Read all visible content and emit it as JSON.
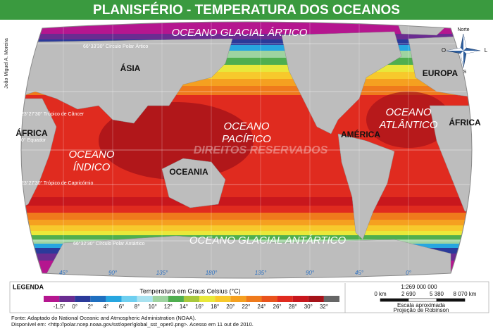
{
  "title": "PLANISFÉRIO - TEMPERATURA DOS OCEANOS",
  "author": "João Miguel A. Moreira",
  "watermark": "DIREITOS RESERVADOS",
  "oceans": [
    [
      "OCEANO GLACIAL ÁRTICO"
    ],
    [
      "OCEANO",
      "PACÍFICO"
    ],
    [
      "OCEANO",
      "ATLÂNTICO"
    ],
    [
      "OCEANO",
      "ÍNDICO"
    ],
    [
      "OCEANO GLACIAL ANTÁRTICO"
    ]
  ],
  "continents": [
    "ÁSIA",
    "EUROPA",
    "ÁFRICA",
    "ÁFRICA",
    "AMÉRICA",
    "OCEANIA"
  ],
  "lines": [
    "66°33'30\" Círculo Polar Ártico",
    "23°27'30\" Trópico de Câncer",
    "0° Equador",
    "23°27'30\" Trópico de Capricórnio",
    "66°32'30\" Círculo Polar Antártico"
  ],
  "longitudes": [
    "45°",
    "90°",
    "135°",
    "180°",
    "135°",
    "90°",
    "45°",
    "0°"
  ],
  "compass": {
    "north": "Norte",
    "west": "O",
    "east": "L",
    "south": "S"
  },
  "legend": {
    "title": "LEGENDA",
    "caption": "Temperatura em Graus Celsius (°C)",
    "labels": [
      "-1,5°",
      "0°",
      "2°",
      "4°",
      "6°",
      "8°",
      "10°",
      "12°",
      "14°",
      "16°",
      "18°",
      "20°",
      "22°",
      "24°",
      "26°",
      "28°",
      "30°",
      "32°"
    ],
    "colors": [
      "#b5168f",
      "#6a2c91",
      "#2b3a9a",
      "#1f6fc0",
      "#27a6e0",
      "#6ecff0",
      "#a9e2f0",
      "#9ed3a0",
      "#4fae4f",
      "#a8c83c",
      "#e9e83a",
      "#f7c92c",
      "#f5a020",
      "#ef7a1c",
      "#e9531c",
      "#e02b1f",
      "#c8171d",
      "#a51319",
      "#666666"
    ]
  },
  "scale": {
    "ratio": "1:269 000 000",
    "ticks": [
      "0 km",
      "2 690",
      "5 380",
      "8 070 km"
    ],
    "caption": "Escala aproximada",
    "projection": "Projeção de Robinson"
  },
  "source": [
    "Fonte: Adaptado do National Oceanic and Atmospheric Administration (NOAA).",
    "Disponível em: <http://polar.ncep.noaa.gov/sst/oper/global_sst_oper0.png>. Acesso em 11 out de 2010."
  ]
}
